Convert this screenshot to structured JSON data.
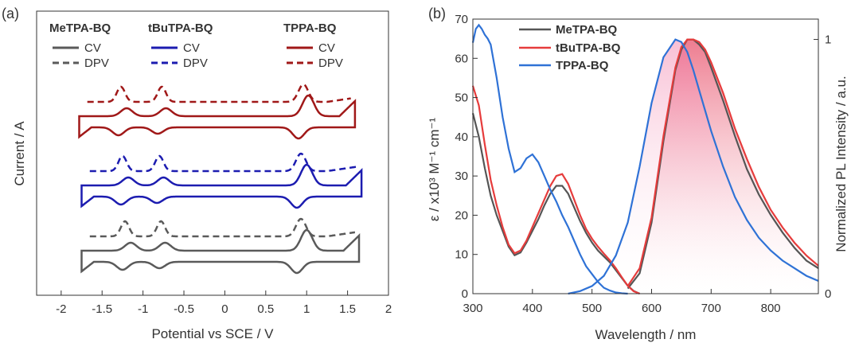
{
  "chart_data": [
    {
      "panel": "(a)",
      "type": "line",
      "xlabel": "Potential vs SCE / V",
      "ylabel": "Current / A",
      "xlim": [
        -2.3,
        2.0
      ],
      "xticks": [
        "-2",
        "-1.5",
        "-1",
        "-0.5",
        "0",
        "0.5",
        "1",
        "1.5",
        "2"
      ],
      "xtick_values": [
        -2,
        -1.5,
        -1,
        -0.5,
        0,
        0.5,
        1,
        1.5,
        2
      ],
      "legend": [
        {
          "title": "MeTPA-BQ",
          "color": "#5a5a5a",
          "cv": "CV",
          "dpv": "DPV"
        },
        {
          "title": "tBuTPA-BQ",
          "color": "#1c1cb0",
          "cv": "CV",
          "dpv": "DPV"
        },
        {
          "title": "TPPA-BQ",
          "color": "#a01818",
          "cv": "CV",
          "dpv": "DPV"
        }
      ],
      "compounds": [
        {
          "name": "MeTPA-BQ",
          "color": "#5a5a5a",
          "dpv_peaks": [
            -1.22,
            -0.78,
            0.93
          ],
          "cv_red": [
            -1.25,
            -0.8,
            0.88
          ],
          "cv_ox": [
            -1.15,
            -0.73,
            1.0
          ],
          "range": [
            -1.75,
            1.65
          ]
        },
        {
          "name": "tBuTPA-BQ",
          "color": "#1c1cb0",
          "dpv_peaks": [
            -1.25,
            -0.8,
            0.93
          ],
          "cv_red": [
            -1.27,
            -0.83,
            0.88
          ],
          "cv_ox": [
            -1.18,
            -0.75,
            1.0
          ],
          "range": [
            -1.75,
            1.68
          ]
        },
        {
          "name": "TPPA-BQ",
          "color": "#a01818",
          "dpv_peaks": [
            -1.27,
            -0.77,
            0.96
          ],
          "cv_red": [
            -1.3,
            -0.82,
            0.9
          ],
          "cv_ox": [
            -1.2,
            -0.72,
            1.02
          ],
          "range": [
            -1.78,
            1.6
          ]
        }
      ]
    },
    {
      "panel": "(b)",
      "type": "line",
      "xlabel": "Wavelength / nm",
      "ylabel_left": "ε / x10³ M⁻¹ cm⁻¹",
      "ylabel_right": "Normalized PL Intensity / a.u.",
      "xlim": [
        300,
        880
      ],
      "ylim_left": [
        0,
        70
      ],
      "ylim_right": [
        0,
        1.08
      ],
      "xticks": [
        "300",
        "400",
        "500",
        "600",
        "700",
        "800"
      ],
      "xtick_values": [
        300,
        400,
        500,
        600,
        700,
        800
      ],
      "yticks_left": [
        "0",
        "10",
        "20",
        "30",
        "40",
        "50",
        "60",
        "70"
      ],
      "ytick_values_left": [
        0,
        10,
        20,
        30,
        40,
        50,
        60,
        70
      ],
      "yticks_right": [
        "0",
        "1"
      ],
      "ytick_values_right": [
        0,
        1
      ],
      "series": [
        {
          "name": "MeTPA-BQ",
          "color": "#555555",
          "absorption": {
            "x": [
              300,
              310,
              320,
              330,
              340,
              350,
              360,
              370,
              380,
              390,
              400,
              410,
              420,
              430,
              440,
              450,
              460,
              470,
              480,
              490,
              500,
              510,
              520,
              530,
              540,
              550,
              560,
              570,
              580
            ],
            "y": [
              46,
              40,
              32,
              25,
              20,
              16,
              12,
              9.8,
              10.5,
              13,
              16,
              19,
              22.5,
              25.5,
              27.5,
              27.5,
              25.5,
              22,
              18.5,
              15.5,
              13,
              11,
              9.5,
              8,
              6,
              4,
              2,
              0.7,
              0
            ]
          },
          "pl": {
            "x": [
              560,
              580,
              600,
              620,
              640,
              650,
              660,
              670,
              680,
              690,
              700,
              720,
              740,
              760,
              780,
              800,
              820,
              840,
              860,
              880
            ],
            "y": [
              0.02,
              0.08,
              0.28,
              0.6,
              0.88,
              0.96,
              1.0,
              1.0,
              0.98,
              0.95,
              0.89,
              0.76,
              0.62,
              0.49,
              0.39,
              0.31,
              0.24,
              0.18,
              0.13,
              0.1
            ]
          }
        },
        {
          "name": "tBuTPA-BQ",
          "color": "#e63c3c",
          "absorption": {
            "x": [
              300,
              310,
              320,
              330,
              340,
              350,
              360,
              370,
              380,
              390,
              400,
              410,
              420,
              430,
              440,
              450,
              460,
              470,
              480,
              490,
              500,
              510,
              520,
              530,
              540,
              550,
              560,
              570,
              580
            ],
            "y": [
              53,
              48,
              38,
              29,
              22.5,
              17,
              12.5,
              10.3,
              11,
              13.5,
              17,
              20.5,
              24,
              27.5,
              30,
              30.5,
              28,
              24,
              20,
              16.5,
              14,
              12,
              10.2,
              8.5,
              6.5,
              4.2,
              2,
              0.6,
              0
            ]
          },
          "pl": {
            "x": [
              560,
              580,
              600,
              620,
              640,
              650,
              660,
              670,
              680,
              690,
              700,
              720,
              740,
              760,
              780,
              800,
              820,
              840,
              860,
              880
            ],
            "y": [
              0.03,
              0.1,
              0.3,
              0.62,
              0.89,
              0.97,
              1.0,
              1.0,
              0.99,
              0.96,
              0.91,
              0.79,
              0.65,
              0.53,
              0.42,
              0.33,
              0.26,
              0.2,
              0.15,
              0.11
            ]
          }
        },
        {
          "name": "TPPA-BQ",
          "color": "#2f72d6",
          "absorption": {
            "x": [
              300,
              305,
              310,
              315,
              320,
              325,
              330,
              340,
              350,
              360,
              370,
              380,
              390,
              400,
              410,
              420,
              430,
              440,
              450,
              460,
              470,
              480,
              490,
              500,
              510,
              520,
              530,
              540,
              550,
              560
            ],
            "y": [
              64,
              67.5,
              68.5,
              67.5,
              66,
              65,
              63.5,
              55,
              45,
              37,
              31,
              32,
              34.5,
              35.5,
              33.5,
              30,
              26.5,
              23.5,
              20,
              17,
              13.5,
              10,
              7,
              5,
              3,
              1.5,
              0.8,
              0.3,
              0.1,
              0
            ]
          },
          "pl": {
            "x": [
              460,
              480,
              500,
              520,
              540,
              560,
              580,
              600,
              620,
              640,
              650,
              660,
              670,
              680,
              700,
              720,
              740,
              760,
              780,
              800,
              820,
              840,
              860,
              880
            ],
            "y": [
              0.0,
              0.01,
              0.03,
              0.07,
              0.15,
              0.28,
              0.5,
              0.75,
              0.93,
              1.0,
              0.99,
              0.95,
              0.88,
              0.8,
              0.64,
              0.5,
              0.38,
              0.29,
              0.22,
              0.17,
              0.13,
              0.1,
              0.07,
              0.05
            ]
          }
        }
      ]
    }
  ]
}
